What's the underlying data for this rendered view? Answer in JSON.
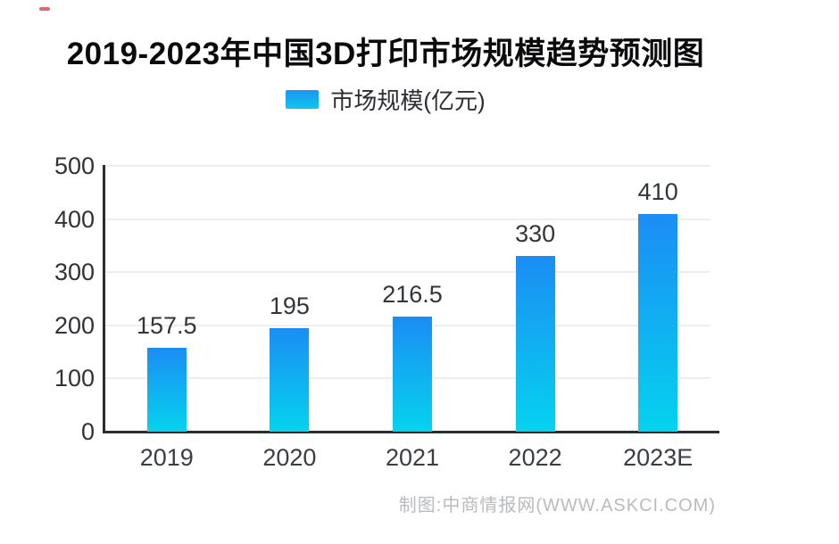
{
  "page": {
    "title": "2019-2023年中国3D打印市场规模趋势预测图",
    "legend_label": "市场规模(亿元)",
    "source_credit": "制图:中商情报网(WWW.ASKCI.COM)"
  },
  "colors": {
    "bar_gradient_top": "#1b8df4",
    "bar_gradient_bottom": "#05d3ee",
    "axis_line": "#2b2d33",
    "gridline": "#eceef0",
    "title_text": "#0b0b0d",
    "tick_text": "#33353a",
    "source_text": "#b9bbbe",
    "corner_mark": "#d94f52"
  },
  "chart_data": {
    "type": "bar",
    "title": "2019-2023年中国3D打印市场规模趋势预测图",
    "categories": [
      "2019",
      "2020",
      "2021",
      "2022",
      "2023E"
    ],
    "series": [
      {
        "name": "市场规模(亿元)",
        "values": [
          157.5,
          195,
          216.5,
          330,
          410
        ]
      }
    ],
    "data_labels": [
      "157.5",
      "195",
      "216.5",
      "330",
      "410"
    ],
    "xlabel": "",
    "ylabel": "",
    "ylim": [
      0,
      500
    ],
    "yticks": [
      0,
      100,
      200,
      300,
      400,
      500
    ],
    "grid": true,
    "legend_position": "top-center"
  }
}
